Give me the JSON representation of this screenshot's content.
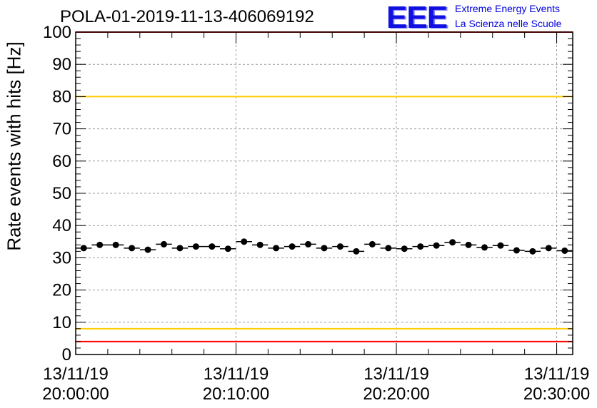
{
  "title": "POLA-01-2019-11-13-406069192",
  "logo": {
    "mark": "EEE",
    "line1": "Extreme Energy Events",
    "line2": "La Scienza nelle Scuole"
  },
  "chart_data": {
    "type": "scatter",
    "title": "POLA-01-2019-11-13-406069192",
    "xlabel": "",
    "ylabel": "Rate events with hits [Hz]",
    "ylim": [
      0,
      100
    ],
    "xlim_minutes": [
      0,
      31
    ],
    "yticks": [
      0,
      10,
      20,
      30,
      40,
      50,
      60,
      70,
      80,
      90,
      100
    ],
    "x_tick_labels": [
      {
        "minute": 0,
        "date": "13/11/19",
        "time": "20:00:00"
      },
      {
        "minute": 10,
        "date": "13/11/19",
        "time": "20:10:00"
      },
      {
        "minute": 20,
        "date": "13/11/19",
        "time": "20:20:00"
      },
      {
        "minute": 30,
        "date": "13/11/19",
        "time": "20:30:00"
      }
    ],
    "grid": true,
    "reference_lines": [
      {
        "y": 100,
        "color": "#ff0000"
      },
      {
        "y": 80,
        "color": "#ffcc00"
      },
      {
        "y": 8,
        "color": "#ffcc00"
      },
      {
        "y": 4,
        "color": "#ff0000"
      }
    ],
    "x_error_half_width_minutes": 0.5,
    "series": [
      {
        "color": "#000000",
        "x": [
          0.5,
          1.5,
          2.5,
          3.5,
          4.5,
          5.5,
          6.5,
          7.5,
          8.5,
          9.5,
          10.5,
          11.5,
          12.5,
          13.5,
          14.5,
          15.5,
          16.5,
          17.5,
          18.5,
          19.5,
          20.5,
          21.5,
          22.5,
          23.5,
          24.5,
          25.5,
          26.5,
          27.5,
          28.5,
          29.5,
          30.5
        ],
        "y": [
          33.0,
          34.0,
          34.0,
          33.0,
          32.5,
          34.2,
          33.0,
          33.5,
          33.5,
          32.8,
          35.0,
          34.0,
          33.0,
          33.5,
          34.2,
          33.0,
          33.5,
          32.0,
          34.2,
          33.0,
          32.8,
          33.5,
          33.8,
          34.8,
          34.0,
          33.2,
          33.8,
          32.3,
          32.0,
          33.0,
          32.2
        ]
      }
    ]
  }
}
